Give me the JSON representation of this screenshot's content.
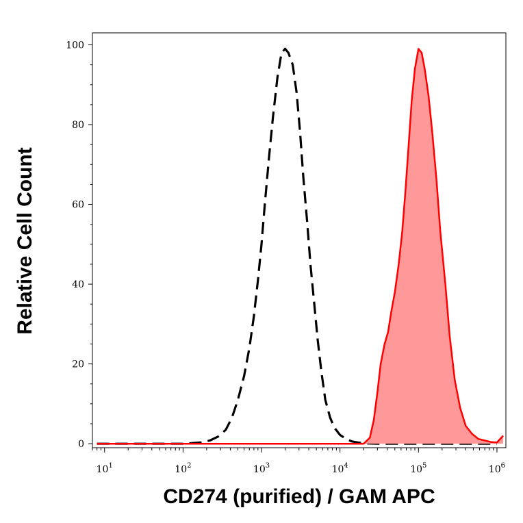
{
  "chart_data": {
    "type": "area",
    "xlabel": "CD274 (purified) / GAM APC",
    "ylabel": "Relative Cell Count",
    "xscale": "log",
    "xlim": [
      7,
      1300000
    ],
    "ylim": [
      -1,
      103
    ],
    "y_ticks": [
      0,
      20,
      40,
      60,
      80,
      100
    ],
    "x_ticks": [
      {
        "base": "10",
        "exp": "1",
        "value": 10
      },
      {
        "base": "10",
        "exp": "2",
        "value": 100
      },
      {
        "base": "10",
        "exp": "3",
        "value": 1000
      },
      {
        "base": "10",
        "exp": "4",
        "value": 10000
      },
      {
        "base": "10",
        "exp": "5",
        "value": 100000
      },
      {
        "base": "10",
        "exp": "6",
        "value": 1000000
      }
    ],
    "grid": false,
    "legend": "none",
    "series": [
      {
        "style": "dashed-black-line",
        "color": "#000000",
        "x": [
          8,
          100,
          170,
          220,
          280,
          350,
          420,
          500,
          600,
          700,
          800,
          900,
          1000,
          1100,
          1250,
          1400,
          1600,
          1800,
          2000,
          2200,
          2500,
          2800,
          3100,
          3400,
          3800,
          4200,
          4700,
          5200,
          5800,
          6500,
          7500,
          8500,
          10000,
          12000,
          14000,
          17000,
          20000,
          30000,
          100000,
          1000000
        ],
        "y": [
          0,
          0,
          0.3,
          0.8,
          1.8,
          3.5,
          6.5,
          11,
          17,
          24,
          32,
          41,
          50,
          60,
          72,
          82,
          92,
          98,
          99,
          98,
          95,
          88,
          78,
          67,
          56,
          45,
          35,
          26,
          18,
          11,
          6.5,
          4,
          2.2,
          1.2,
          0.6,
          0.3,
          0.1,
          0,
          0,
          0
        ]
      },
      {
        "style": "filled-red-area",
        "color": "#ff0000",
        "fill": "#ff9999",
        "x": [
          8,
          20000,
          24000,
          27000,
          30000,
          33000,
          37000,
          41000,
          45000,
          50000,
          56000,
          62000,
          68000,
          75000,
          82000,
          90000,
          100000,
          110000,
          120000,
          135000,
          150000,
          170000,
          190000,
          220000,
          250000,
          290000,
          340000,
          400000,
          480000,
          580000,
          700000,
          850000,
          1000000,
          1200000
        ],
        "y": [
          0,
          0,
          1.5,
          6,
          13,
          20,
          25,
          28,
          33,
          38,
          45,
          53,
          63,
          75,
          86,
          94,
          99,
          98,
          94,
          87,
          78,
          66,
          53,
          40,
          27,
          16,
          9,
          4.5,
          2.5,
          1.2,
          0.8,
          0.4,
          0.3,
          2
        ]
      }
    ]
  }
}
